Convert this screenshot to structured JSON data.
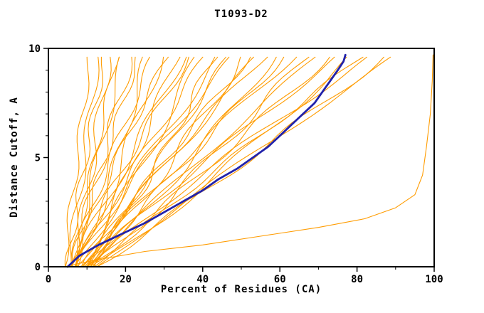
{
  "chart_data": {
    "type": "line",
    "title": "T1093-D2",
    "xlabel": "Percent of Residues (CA)",
    "ylabel": "Distance Cutoff, A",
    "xlim": [
      0,
      100
    ],
    "ylim": [
      0,
      10
    ],
    "x_ticks": [
      0,
      20,
      40,
      60,
      80,
      100
    ],
    "x_minor_ticks": [
      10,
      30,
      50,
      70,
      90
    ],
    "y_ticks": [
      0,
      5,
      10
    ],
    "y_minor_ticks": [
      1,
      2,
      3,
      4,
      6,
      7,
      8,
      9
    ],
    "grid": false,
    "legend": "none",
    "colors": {
      "model_curves": "#FF9C00",
      "highlight_curve": "#2222AA",
      "axis": "#000000",
      "background": "#FFFFFF"
    },
    "curve_top_y": 9.7,
    "series_param_encoding": "model_series_params rows are [x_at_y0, x_at_y10, curvature_power, wiggle_amplitude, wiggle_freq, wiggle_phase]; x(y)=x0+(x10-x0)*(y/10)^p + wa*sin(wf*y+wp)",
    "model_series_params": [
      [
        4,
        11,
        1.0,
        0.8,
        1.7,
        0.5
      ],
      [
        5,
        13,
        0.9,
        1.0,
        1.4,
        2.1
      ],
      [
        5,
        15,
        1.1,
        0.9,
        2.0,
        4.0
      ],
      [
        6,
        16,
        0.85,
        1.2,
        1.5,
        1.0
      ],
      [
        6,
        18,
        1.0,
        0.8,
        1.8,
        3.2
      ],
      [
        7,
        20,
        1.15,
        1.1,
        1.3,
        5.1
      ],
      [
        5,
        22,
        0.9,
        1.3,
        1.6,
        0.2
      ],
      [
        6,
        24,
        1.05,
        0.9,
        2.1,
        2.8
      ],
      [
        7,
        26,
        0.8,
        1.2,
        1.4,
        4.4
      ],
      [
        6,
        28,
        1.1,
        1.0,
        1.7,
        1.6
      ],
      [
        8,
        30,
        0.95,
        1.4,
        1.2,
        3.7
      ],
      [
        7,
        32,
        1.2,
        0.9,
        1.9,
        0.9
      ],
      [
        8,
        34,
        0.85,
        1.1,
        1.5,
        5.6
      ],
      [
        6,
        36,
        1.0,
        1.3,
        1.3,
        2.4
      ],
      [
        7,
        38,
        1.15,
        1.0,
        1.8,
        4.9
      ],
      [
        8,
        40,
        0.9,
        1.5,
        1.1,
        1.2
      ],
      [
        7,
        42,
        1.05,
        1.1,
        1.6,
        3.0
      ],
      [
        9,
        44,
        0.8,
        1.2,
        2.0,
        0.6
      ],
      [
        8,
        46,
        1.1,
        1.4,
        1.2,
        5.2
      ],
      [
        9,
        48,
        0.95,
        1.0,
        1.7,
        2.0
      ],
      [
        8,
        50,
        1.2,
        1.2,
        1.4,
        4.1
      ],
      [
        10,
        52,
        0.9,
        1.5,
        1.5,
        1.8
      ],
      [
        9,
        54,
        1.05,
        1.1,
        1.9,
        3.5
      ],
      [
        8,
        56,
        1.0,
        1.3,
        1.2,
        0.3
      ],
      [
        10,
        58,
        1.15,
        1.0,
        1.6,
        5.0
      ],
      [
        9,
        60,
        0.85,
        1.4,
        1.3,
        2.6
      ],
      [
        10,
        63,
        1.0,
        1.2,
        1.8,
        4.6
      ],
      [
        9,
        66,
        1.1,
        1.1,
        1.4,
        1.4
      ],
      [
        11,
        69,
        0.9,
        1.5,
        1.6,
        3.9
      ],
      [
        10,
        72,
        1.05,
        1.0,
        1.2,
        0.8
      ],
      [
        11,
        75,
        0.95,
        1.3,
        1.7,
        5.4
      ],
      [
        10,
        78,
        1.1,
        1.1,
        1.5,
        2.2
      ],
      [
        12,
        81,
        0.9,
        1.4,
        1.3,
        4.3
      ],
      [
        11,
        84,
        1.0,
        1.0,
        1.9,
        1.1
      ],
      [
        12,
        87,
        1.15,
        1.2,
        1.4,
        3.3
      ],
      [
        12,
        90,
        0.95,
        1.4,
        1.6,
        0.4
      ],
      [
        13,
        93,
        1.05,
        1.0,
        1.2,
        5.8
      ]
    ],
    "outlier_series_points": [
      [
        4,
        0
      ],
      [
        12,
        0.3
      ],
      [
        25,
        0.7
      ],
      [
        40,
        1.0
      ],
      [
        55,
        1.4
      ],
      [
        70,
        1.8
      ],
      [
        82,
        2.2
      ],
      [
        90,
        2.7
      ],
      [
        95,
        3.3
      ],
      [
        97,
        4.2
      ],
      [
        98,
        5.5
      ],
      [
        99,
        7.0
      ],
      [
        99.5,
        8.5
      ],
      [
        99.7,
        9.7
      ]
    ],
    "highlight_series_points": [
      [
        5,
        0
      ],
      [
        8,
        0.5
      ],
      [
        13,
        1
      ],
      [
        19,
        1.5
      ],
      [
        25,
        2
      ],
      [
        30,
        2.5
      ],
      [
        35,
        3
      ],
      [
        40,
        3.5
      ],
      [
        44,
        4
      ],
      [
        49,
        4.5
      ],
      [
        53,
        5
      ],
      [
        57,
        5.5
      ],
      [
        60,
        6
      ],
      [
        63,
        6.5
      ],
      [
        66,
        7
      ],
      [
        69,
        7.5
      ],
      [
        71,
        8
      ],
      [
        73,
        8.5
      ],
      [
        75,
        9
      ],
      [
        76.5,
        9.4
      ],
      [
        77,
        9.7
      ]
    ]
  }
}
